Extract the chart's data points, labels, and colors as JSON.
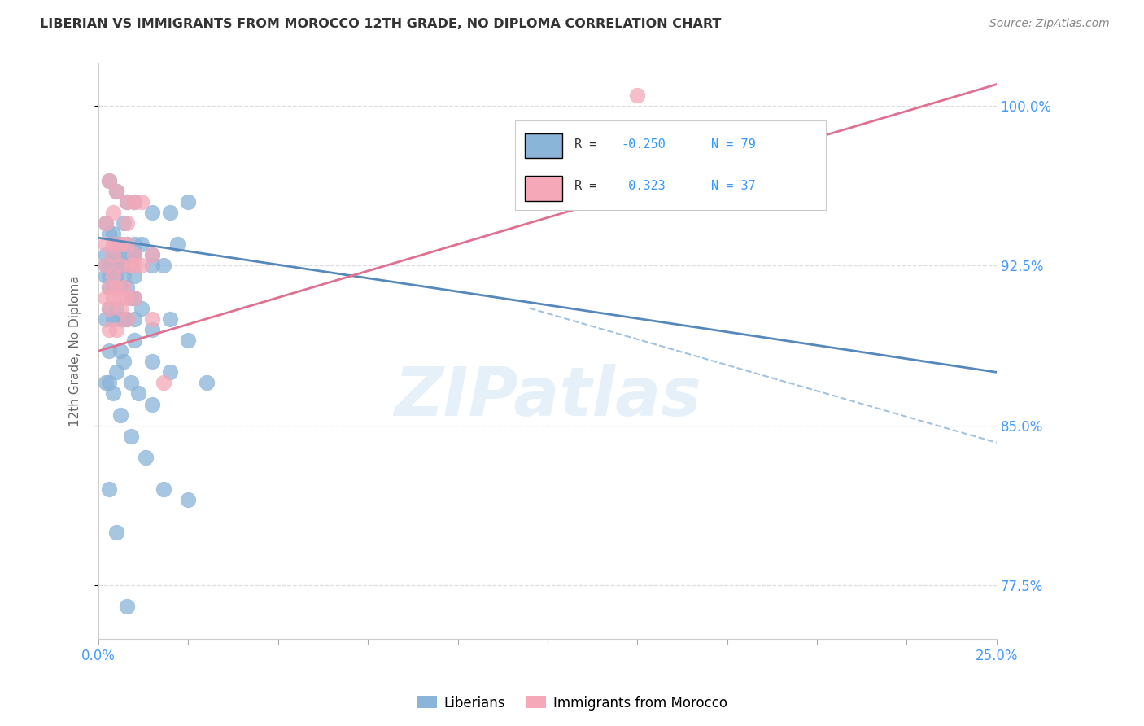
{
  "title": "LIBERIAN VS IMMIGRANTS FROM MOROCCO 12TH GRADE, NO DIPLOMA CORRELATION CHART",
  "source": "Source: ZipAtlas.com",
  "ylabel_label": "12th Grade, No Diploma",
  "legend_label1": "Liberians",
  "legend_label2": "Immigrants from Morocco",
  "color_blue": "#8ab4d8",
  "color_pink": "#f4a8b8",
  "color_blue_line": "#5588bb",
  "color_pink_line": "#e07090",
  "blue_scatter_x": [
    0.3,
    0.5,
    0.8,
    1.0,
    1.5,
    2.0,
    2.5,
    0.2,
    0.3,
    0.4,
    0.5,
    0.6,
    0.7,
    0.8,
    0.9,
    1.0,
    1.2,
    0.2,
    0.3,
    0.4,
    0.5,
    0.6,
    0.8,
    1.0,
    1.5,
    2.2,
    0.3,
    0.5,
    0.7,
    1.0,
    1.5,
    0.2,
    0.3,
    0.5,
    0.7,
    1.0,
    1.8,
    0.2,
    0.4,
    0.6,
    0.3,
    0.5,
    0.8,
    1.0,
    0.3,
    0.5,
    0.7,
    0.9,
    1.2,
    2.0,
    0.2,
    0.4,
    0.6,
    0.8,
    1.0,
    1.5,
    2.5,
    0.3,
    0.6,
    1.0,
    1.5,
    2.0,
    3.0,
    0.3,
    0.5,
    0.7,
    0.9,
    1.1,
    1.5,
    0.2,
    0.4,
    0.6,
    0.9,
    1.3,
    1.8,
    2.5,
    0.3,
    0.5,
    0.8
  ],
  "blue_scatter_y": [
    96.5,
    96.0,
    95.5,
    95.5,
    95.0,
    95.0,
    95.5,
    94.5,
    94.0,
    94.0,
    93.5,
    93.5,
    94.5,
    93.0,
    93.0,
    93.5,
    93.5,
    93.0,
    92.5,
    93.0,
    93.0,
    92.5,
    93.5,
    93.0,
    93.0,
    93.5,
    92.5,
    92.5,
    92.5,
    93.0,
    92.5,
    92.5,
    92.0,
    92.0,
    92.0,
    92.0,
    92.5,
    92.0,
    91.5,
    91.5,
    91.5,
    91.5,
    91.5,
    91.0,
    90.5,
    90.5,
    90.0,
    91.0,
    90.5,
    90.0,
    90.0,
    90.0,
    90.0,
    90.0,
    90.0,
    89.5,
    89.0,
    88.5,
    88.5,
    89.0,
    88.0,
    87.5,
    87.0,
    87.0,
    87.5,
    88.0,
    87.0,
    86.5,
    86.0,
    87.0,
    86.5,
    85.5,
    84.5,
    83.5,
    82.0,
    81.5,
    82.0,
    80.0,
    76.5
  ],
  "pink_scatter_x": [
    0.2,
    0.3,
    0.4,
    0.5,
    0.8,
    1.0,
    1.2,
    0.2,
    0.4,
    0.6,
    0.8,
    1.0,
    1.5,
    0.2,
    0.4,
    0.6,
    0.8,
    1.2,
    0.3,
    0.5,
    0.7,
    0.9,
    0.2,
    0.4,
    0.6,
    0.8,
    1.0,
    1.8,
    0.3,
    0.6,
    1.0,
    1.5,
    0.3,
    0.5,
    0.8,
    15.0,
    0.4
  ],
  "pink_scatter_y": [
    94.5,
    96.5,
    95.0,
    96.0,
    95.5,
    95.5,
    95.5,
    93.5,
    93.5,
    93.5,
    94.5,
    93.0,
    93.0,
    92.5,
    93.0,
    92.5,
    93.5,
    92.5,
    91.5,
    91.5,
    91.5,
    92.5,
    91.0,
    91.0,
    91.0,
    91.0,
    91.0,
    87.0,
    90.5,
    90.5,
    92.5,
    90.0,
    89.5,
    89.5,
    90.0,
    100.5,
    92.0
  ],
  "xlim": [
    0,
    25
  ],
  "ylim": [
    75,
    102
  ],
  "yticks": [
    77.5,
    85.0,
    92.5,
    100.0
  ],
  "blue_line_x0": 0,
  "blue_line_y0": 93.8,
  "blue_line_x1": 25,
  "blue_line_y1": 87.5,
  "pink_line_x0": 0,
  "pink_line_y0": 88.5,
  "pink_line_x1": 25,
  "pink_line_y1": 101.0,
  "blue_dash_x0": 12,
  "blue_dash_y0": 90.5,
  "blue_dash_x1": 25,
  "blue_dash_y1": 84.2,
  "watermark": "ZIPatlas",
  "bg_color": "#ffffff",
  "grid_color": "#dddddd",
  "tick_color": "#4499ff",
  "title_color": "#333333",
  "source_color": "#888888"
}
